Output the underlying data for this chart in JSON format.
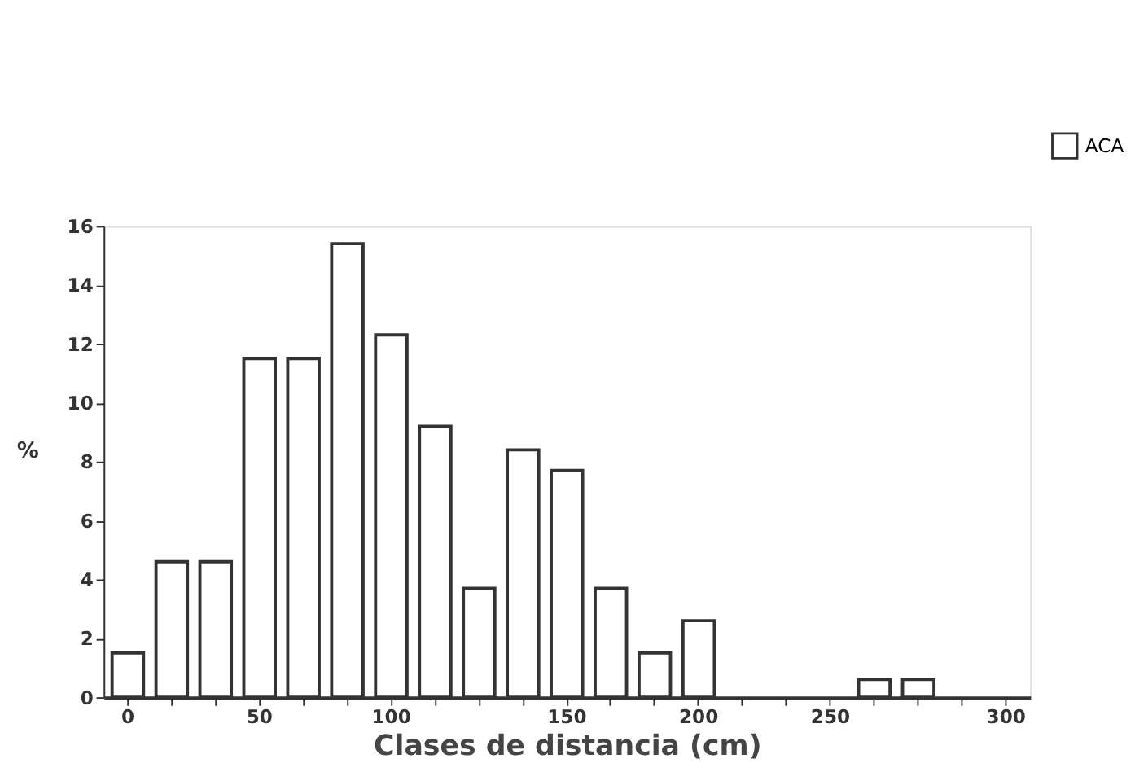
{
  "chart_data": {
    "type": "bar",
    "xlabel": "Clases de distancia (cm)",
    "ylabel": "%",
    "categories": [
      "0",
      null,
      null,
      "50",
      null,
      null,
      "100",
      null,
      null,
      null,
      "150",
      null,
      null,
      "200",
      null,
      null,
      "250",
      null,
      null,
      null,
      "300"
    ],
    "series": [
      {
        "name": "ACA",
        "color": "#ffffff",
        "values": [
          1.5,
          4.6,
          4.6,
          11.5,
          11.5,
          15.4,
          12.3,
          9.2,
          3.7,
          8.4,
          7.7,
          3.7,
          1.5,
          2.6,
          0,
          0,
          0,
          0.6,
          0.6,
          0,
          0
        ]
      }
    ],
    "ylim": [
      0,
      16
    ],
    "yticks": [
      0,
      2,
      4,
      6,
      8,
      10,
      12,
      14,
      16
    ],
    "grid": false,
    "legend": "top right"
  }
}
